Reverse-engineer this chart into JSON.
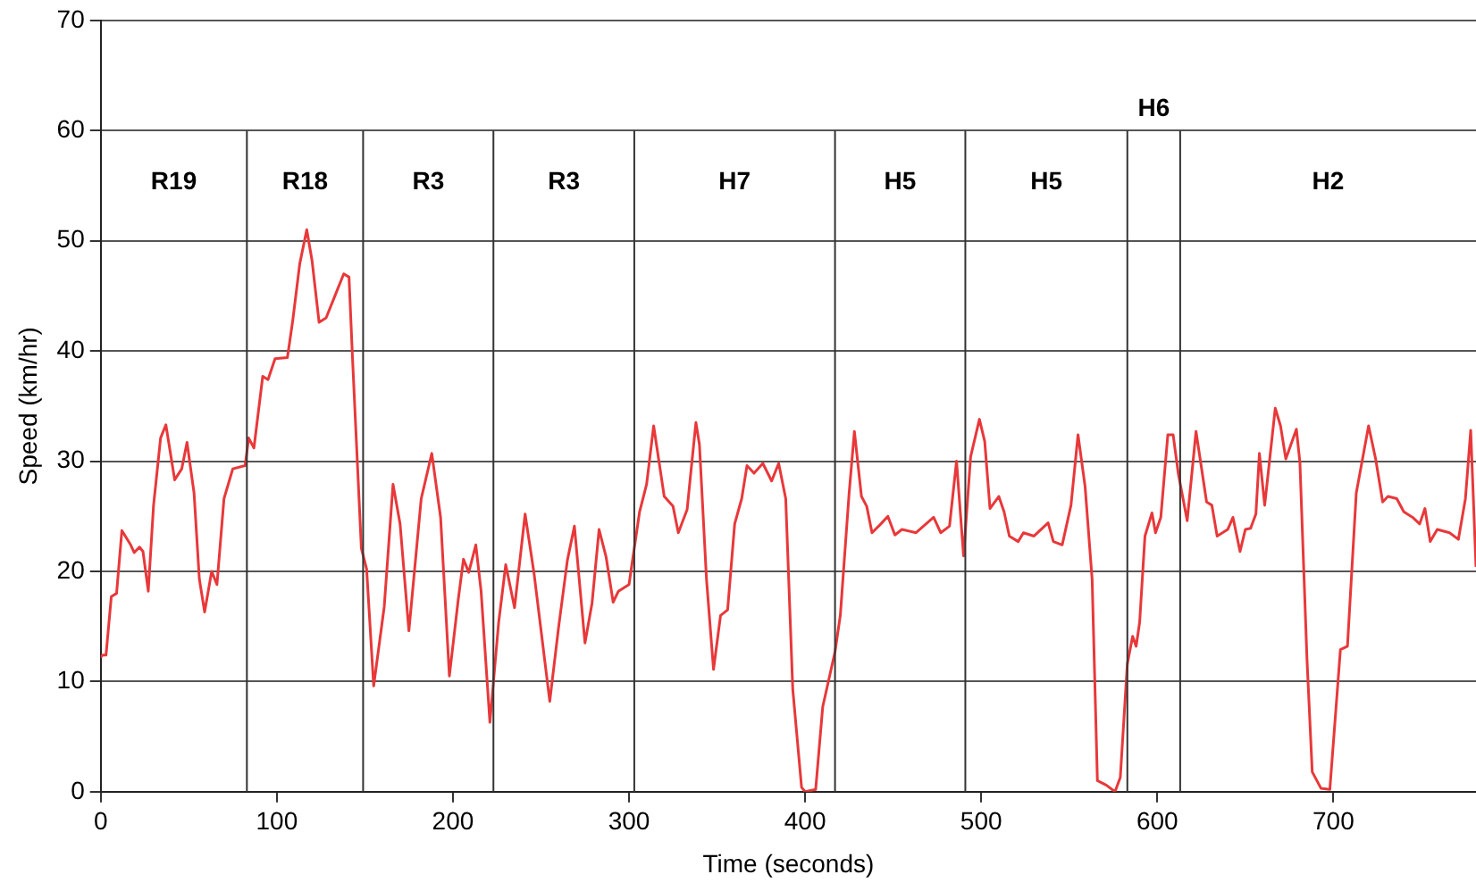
{
  "chart_data": {
    "type": "line",
    "xlabel": "Time (seconds)",
    "ylabel": "Speed (km/hr)",
    "x": [
      0,
      1,
      3,
      6,
      9,
      12,
      17,
      19,
      22,
      24,
      27,
      30,
      34,
      37,
      42,
      46,
      49,
      53,
      56,
      59,
      63,
      66,
      70,
      75,
      82,
      84,
      87,
      92,
      95,
      99,
      106,
      109,
      113,
      117,
      120,
      124,
      128,
      133,
      138,
      141,
      143,
      148,
      151,
      155,
      161,
      166,
      170,
      175,
      182,
      188,
      193,
      198,
      203,
      206,
      209,
      213,
      216,
      221,
      226,
      230,
      235,
      241,
      246,
      255,
      260,
      265,
      269,
      275,
      279,
      283,
      287,
      291,
      294,
      300,
      306,
      310,
      314,
      320,
      325,
      328,
      333,
      335,
      338,
      340,
      344,
      348,
      352,
      356,
      360,
      364,
      367,
      371,
      376,
      381,
      385,
      389,
      393,
      398,
      400,
      406,
      410,
      417,
      420,
      425,
      428,
      432,
      435,
      438,
      443,
      447,
      451,
      455,
      463,
      473,
      477,
      482,
      486,
      490,
      494,
      499,
      502,
      505,
      510,
      513,
      516,
      521,
      524,
      530,
      538,
      541,
      546,
      551,
      555,
      559,
      563,
      566,
      571,
      576,
      579,
      583,
      586,
      588,
      590,
      593,
      597,
      599,
      602,
      606,
      609,
      612,
      617,
      622,
      628,
      631,
      634,
      640,
      643,
      647,
      650,
      653,
      656,
      658,
      661,
      664,
      667,
      670,
      673,
      679,
      681,
      685,
      688,
      693,
      698,
      704,
      708,
      713,
      720,
      724,
      728,
      731,
      736,
      740,
      745,
      749,
      752,
      755,
      759,
      766,
      771,
      775,
      778,
      781
    ],
    "values": [
      12.2,
      12.4,
      12.4,
      17.7,
      18,
      23.7,
      22.4,
      21.7,
      22.2,
      21.8,
      18.2,
      26,
      32.1,
      33.3,
      28.3,
      29.3,
      31.7,
      27.1,
      19.3,
      16.3,
      20,
      18.8,
      26.6,
      29.3,
      29.6,
      32.1,
      31.2,
      37.7,
      37.4,
      39.3,
      39.4,
      42.7,
      47.9,
      51,
      48.2,
      42.6,
      43,
      45,
      47,
      46.7,
      39.3,
      22.1,
      20.2,
      9.6,
      16.8,
      27.9,
      24.3,
      14.6,
      26.6,
      30.7,
      24.9,
      10.5,
      17.4,
      21.1,
      19.9,
      22.4,
      18.2,
      6.3,
      15.4,
      20.6,
      16.7,
      25.2,
      19.9,
      8.2,
      14.9,
      21,
      24.1,
      13.5,
      17.1,
      23.8,
      21.3,
      17.2,
      18.2,
      18.8,
      25.4,
      27.9,
      33.2,
      26.8,
      25.9,
      23.5,
      25.6,
      28.8,
      33.5,
      31.5,
      19.3,
      11.1,
      16,
      16.5,
      24.3,
      26.6,
      29.6,
      28.9,
      29.8,
      28.2,
      29.8,
      26.6,
      9.3,
      0.4,
      0,
      0.2,
      7.7,
      12.7,
      16,
      27.1,
      32.7,
      26.8,
      25.9,
      23.5,
      24.3,
      25,
      23.3,
      23.8,
      23.5,
      24.9,
      23.5,
      24.1,
      30,
      21.4,
      30.4,
      33.8,
      31.8,
      25.7,
      26.8,
      25.4,
      23.2,
      22.7,
      23.5,
      23.2,
      24.4,
      22.7,
      22.4,
      26,
      32.4,
      27.7,
      19.3,
      1,
      0.6,
      0,
      1.3,
      11.6,
      14.1,
      13.2,
      15.4,
      23.2,
      25.3,
      23.5,
      24.9,
      32.4,
      32.4,
      28.8,
      24.6,
      32.7,
      26.3,
      26,
      23.2,
      23.8,
      24.9,
      21.8,
      23.8,
      23.9,
      25.2,
      30.7,
      26,
      30.4,
      34.8,
      33.2,
      30.2,
      32.9,
      29.9,
      12.1,
      1.8,
      0.3,
      0.2,
      12.9,
      13.2,
      27.1,
      33.2,
      30.2,
      26.3,
      26.8,
      26.6,
      25.4,
      24.9,
      24.3,
      25.7,
      22.7,
      23.8,
      23.5,
      22.9,
      26.6,
      32.8,
      20.4
    ],
    "color": "#e8383a",
    "line_style": "solid",
    "marker": "none",
    "grid": "y",
    "legend": false,
    "xlim": [
      0,
      781
    ],
    "xticks": [
      0,
      100,
      200,
      300,
      400,
      500,
      600,
      700
    ],
    "ylim": [
      0,
      70
    ],
    "yticks": [
      0,
      10,
      20,
      30,
      40,
      50,
      60,
      70
    ],
    "ref_lines": [
      {
        "axis": "x",
        "value": 83,
        "color": "#333333"
      },
      {
        "axis": "x",
        "value": 149,
        "color": "#333333"
      },
      {
        "axis": "x",
        "value": 223,
        "color": "#333333"
      },
      {
        "axis": "x",
        "value": 303,
        "color": "#333333"
      },
      {
        "axis": "x",
        "value": 417,
        "color": "#333333"
      },
      {
        "axis": "x",
        "value": 491,
        "color": "#333333"
      },
      {
        "axis": "x",
        "value": 583,
        "color": "#333333"
      },
      {
        "axis": "x",
        "value": 613,
        "color": "#333333"
      }
    ],
    "annotations": [
      "R19",
      "R18",
      "R3",
      "R3",
      "H7",
      "H5",
      "H5",
      "H6",
      "H2"
    ]
  }
}
